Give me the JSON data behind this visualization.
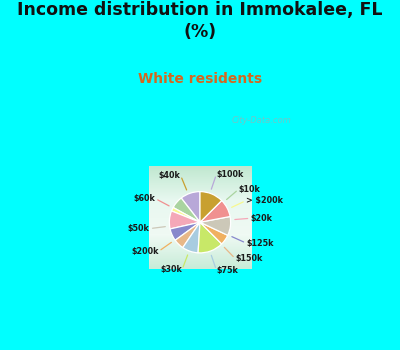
{
  "title": "Income distribution in Immokalee, FL\n(%)",
  "subtitle": "White residents",
  "title_color": "#111111",
  "subtitle_color": "#d46820",
  "background_top": "#00ffff",
  "background_chart_color": "#dff0e8",
  "labels": [
    "$100k",
    "$10k",
    "> $200k",
    "$20k",
    "$125k",
    "$150k",
    "$75k",
    "$30k",
    "$200k",
    "$50k",
    "$60k",
    "$40k"
  ],
  "values": [
    10.5,
    6.5,
    2.0,
    9.5,
    6.5,
    5.5,
    8.5,
    13.5,
    5.5,
    10.0,
    9.5,
    12.5
  ],
  "colors": [
    "#b8a8d8",
    "#aad4a0",
    "#f8f890",
    "#f4a8b8",
    "#8888cc",
    "#e8b888",
    "#a8cce0",
    "#c8e868",
    "#f0b060",
    "#ccc8b8",
    "#f09090",
    "#c8a030"
  ],
  "startangle": 90,
  "watermark": "City-Data.com"
}
